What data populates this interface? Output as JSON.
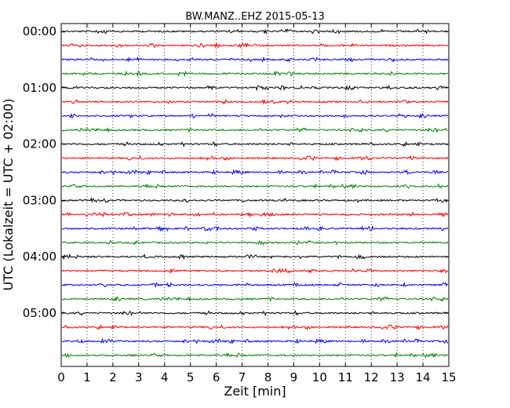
{
  "chart_data": {
    "type": "line",
    "title": "BW.MANZ..EHZ 2015-05-13",
    "xlabel": "Zeit  [min]",
    "ylabel": "UTC (Lokalzeit = UTC + 02:00)",
    "xlim": [
      0,
      15
    ],
    "x_ticks": [
      "0",
      "1",
      "2",
      "3",
      "4",
      "5",
      "6",
      "7",
      "8",
      "9",
      "10",
      "11",
      "12",
      "13",
      "14",
      "15"
    ],
    "y_tick_labels": [
      "00:00",
      "01:00",
      "02:00",
      "03:00",
      "04:00",
      "05:00"
    ],
    "grid": "vertical dotted lines at each minute",
    "trace_interval_minutes": 15,
    "trace_count": 24,
    "trace_colors": [
      "#000000",
      "#ff0000",
      "#0000ff",
      "#008000"
    ],
    "traces": [
      "00:00",
      "00:15",
      "00:30",
      "00:45",
      "01:00",
      "01:15",
      "01:30",
      "01:45",
      "02:00",
      "02:15",
      "02:30",
      "02:45",
      "03:00",
      "03:15",
      "03:30",
      "03:45",
      "04:00",
      "04:15",
      "04:30",
      "04:45",
      "05:00",
      "05:15",
      "05:30",
      "05:45"
    ]
  }
}
